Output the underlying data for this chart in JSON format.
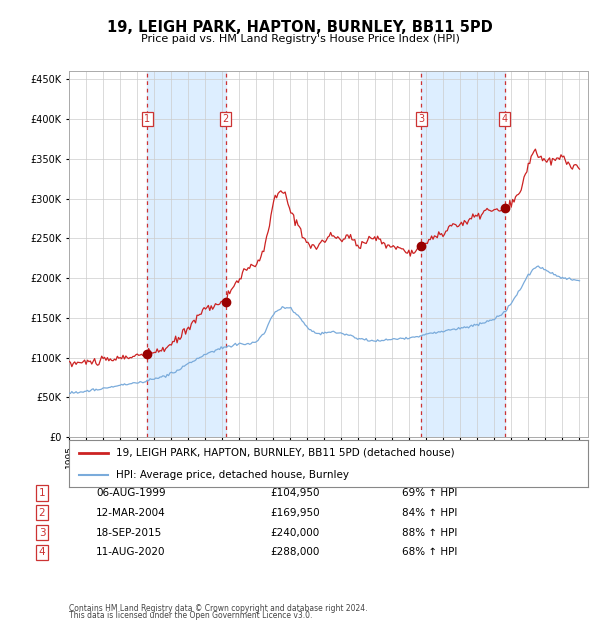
{
  "title": "19, LEIGH PARK, HAPTON, BURNLEY, BB11 5PD",
  "subtitle": "Price paid vs. HM Land Registry's House Price Index (HPI)",
  "legend_line1": "19, LEIGH PARK, HAPTON, BURNLEY, BB11 5PD (detached house)",
  "legend_line2": "HPI: Average price, detached house, Burnley",
  "footer1": "Contains HM Land Registry data © Crown copyright and database right 2024.",
  "footer2": "This data is licensed under the Open Government Licence v3.0.",
  "transactions": [
    {
      "num": 1,
      "date": "06-AUG-1999",
      "price": 104950,
      "price_str": "£104,950",
      "pct": "69% ↑ HPI"
    },
    {
      "num": 2,
      "date": "12-MAR-2004",
      "price": 169950,
      "price_str": "£169,950",
      "pct": "84% ↑ HPI"
    },
    {
      "num": 3,
      "date": "18-SEP-2015",
      "price": 240000,
      "price_str": "£240,000",
      "pct": "88% ↑ HPI"
    },
    {
      "num": 4,
      "date": "11-AUG-2020",
      "price": 288000,
      "price_str": "£288,000",
      "pct": "68% ↑ HPI"
    }
  ],
  "hpi_color": "#7aabdb",
  "price_color": "#cc2222",
  "dot_color": "#990000",
  "vline_color": "#cc3333",
  "shade_color": "#ddeeff",
  "background_color": "#ffffff",
  "grid_color": "#cccccc",
  "ylim": [
    0,
    460000
  ],
  "yticks": [
    0,
    50000,
    100000,
    150000,
    200000,
    250000,
    300000,
    350000,
    400000,
    450000
  ],
  "xstart": 1995,
  "xend": 2025
}
